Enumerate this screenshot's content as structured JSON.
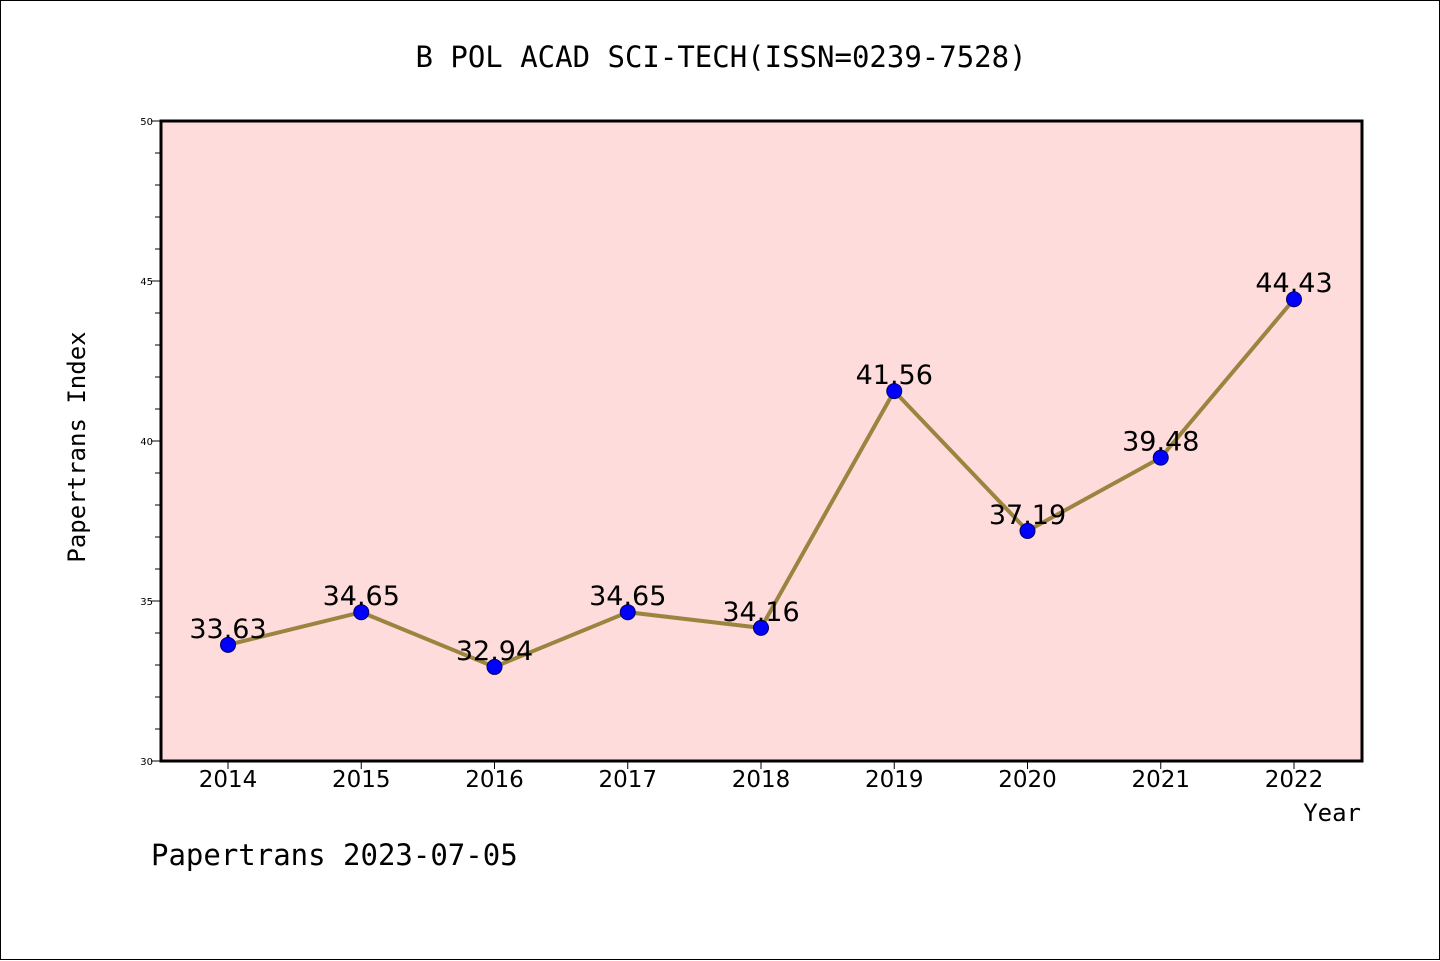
{
  "chart_data": {
    "type": "line",
    "title": "B POL ACAD SCI-TECH(ISSN=0239-7528)",
    "xlabel": "Year",
    "ylabel": "Papertrans Index",
    "ylim": [
      30,
      50
    ],
    "yticks": [
      30,
      35,
      40,
      45,
      50
    ],
    "x": [
      "2014",
      "2015",
      "2016",
      "2017",
      "2018",
      "2019",
      "2020",
      "2021",
      "2022"
    ],
    "series": [
      {
        "values": [
          33.63,
          34.65,
          32.94,
          34.65,
          34.16,
          41.56,
          37.19,
          39.48,
          44.43
        ],
        "data_labels": [
          "33.63",
          "34.65",
          "32.94",
          "34.65",
          "34.16",
          "41.56",
          "37.19",
          "39.48",
          "44.43"
        ]
      }
    ],
    "grid": false,
    "footer": "Papertrans 2023-07-05",
    "colors": {
      "plot_background": "#ffdcdc",
      "line": "#9b8440",
      "marker": "#0000ff",
      "marker_edge": "#000066",
      "axis": "#000000"
    }
  }
}
